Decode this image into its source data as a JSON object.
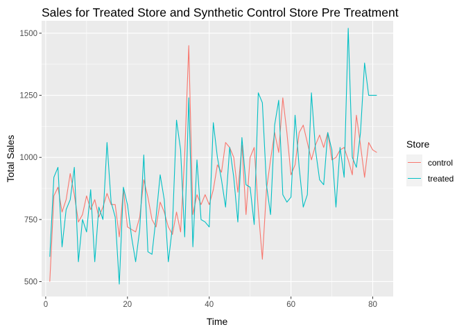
{
  "chart_data": {
    "type": "line",
    "title": "Sales for Treated Store and Synthetic Control Store Pre Treatment",
    "xlabel": "Time",
    "ylabel": "Total Sales",
    "xlim": [
      -1,
      85
    ],
    "ylim": [
      440,
      1550
    ],
    "xticks": [
      0,
      20,
      40,
      60,
      80
    ],
    "yticks": [
      500,
      750,
      1000,
      1250,
      1500
    ],
    "grid": true,
    "legend": {
      "title": "Store",
      "position": "right"
    },
    "x": [
      1,
      2,
      3,
      4,
      5,
      6,
      7,
      8,
      9,
      10,
      11,
      12,
      13,
      14,
      15,
      16,
      17,
      18,
      19,
      20,
      21,
      22,
      23,
      24,
      25,
      26,
      27,
      28,
      29,
      30,
      31,
      32,
      33,
      34,
      35,
      36,
      37,
      38,
      39,
      40,
      41,
      42,
      43,
      44,
      45,
      46,
      47,
      48,
      49,
      50,
      51,
      52,
      53,
      54,
      55,
      56,
      57,
      58,
      59,
      60,
      61,
      62,
      63,
      64,
      65,
      66,
      67,
      68,
      69,
      70,
      71,
      72,
      73,
      74,
      75,
      76,
      77,
      78,
      79,
      80,
      81
    ],
    "series": [
      {
        "name": "control",
        "color": "#F8766D",
        "values": [
          500,
          845,
          880,
          780,
          830,
          935,
          850,
          740,
          770,
          845,
          790,
          830,
          760,
          800,
          855,
          810,
          810,
          680,
          870,
          720,
          710,
          700,
          760,
          910,
          840,
          750,
          720,
          820,
          780,
          720,
          690,
          780,
          700,
          1010,
          1450,
          770,
          850,
          810,
          850,
          810,
          870,
          970,
          940,
          1060,
          1040,
          1000,
          860,
          1050,
          770,
          1000,
          1040,
          790,
          590,
          870,
          990,
          1100,
          1020,
          1240,
          1100,
          930,
          970,
          1100,
          1130,
          1060,
          990,
          1050,
          1090,
          1040,
          1100,
          990,
          1000,
          1030,
          1040,
          990,
          930,
          1170,
          1050,
          920,
          1060,
          1030,
          1020
        ]
      },
      {
        "name": "treated",
        "color": "#00BFC4",
        "values": [
          600,
          920,
          960,
          640,
          790,
          830,
          960,
          580,
          750,
          700,
          870,
          580,
          800,
          750,
          1060,
          820,
          760,
          490,
          880,
          810,
          680,
          580,
          710,
          1010,
          620,
          610,
          760,
          930,
          830,
          580,
          720,
          1150,
          1030,
          680,
          1240,
          640,
          990,
          750,
          740,
          720,
          1140,
          1000,
          910,
          800,
          1040,
          920,
          740,
          1080,
          890,
          880,
          730,
          1260,
          1220,
          890,
          770,
          1130,
          1230,
          850,
          820,
          840,
          1170,
          960,
          800,
          850,
          1260,
          1030,
          910,
          890,
          1100,
          1030,
          800,
          1040,
          920,
          1520,
          1000,
          960,
          1100,
          1380,
          1250,
          1250,
          1250
        ]
      }
    ]
  }
}
